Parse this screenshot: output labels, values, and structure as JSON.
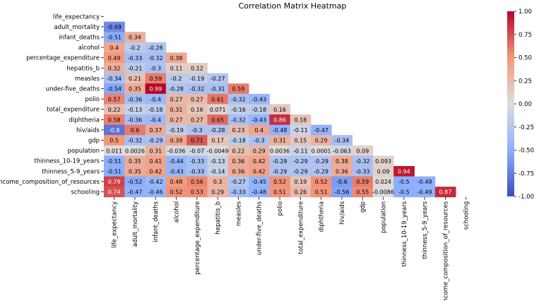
{
  "chart_data": {
    "type": "heatmap",
    "title": "Correlation Matrix Heatmap",
    "variables": [
      "life_expectancy",
      "adult_mortality",
      "infant_deaths",
      "alcohol",
      "percentage_expenditure",
      "hepatitis_b",
      "measles",
      "under-five_deaths",
      "polio",
      "total_expenditure",
      "diphtheria",
      "hiv/aids",
      "gdp",
      "population",
      "thinness_10-19_years",
      "thinness_5-9_years",
      "income_composition_of_resources",
      "schooling"
    ],
    "mask": "upper-triangle-including-diagonal",
    "lower_triangle_values": [
      [],
      [
        "-0.69"
      ],
      [
        "-0.51",
        "0.34"
      ],
      [
        "0.4",
        "-0.2",
        "-0.28"
      ],
      [
        "0.49",
        "-0.33",
        "-0.32",
        "0.38"
      ],
      [
        "0.32",
        "-0.21",
        "-0.3",
        "0.11",
        "0.12"
      ],
      [
        "-0.34",
        "0.21",
        "0.59",
        "-0.2",
        "-0.19",
        "-0.27"
      ],
      [
        "-0.54",
        "0.35",
        "0.99",
        "-0.28",
        "-0.32",
        "-0.31",
        "0.59"
      ],
      [
        "0.57",
        "-0.36",
        "-0.4",
        "0.27",
        "0.27",
        "0.61",
        "-0.32",
        "-0.43"
      ],
      [
        "0.22",
        "-0.13",
        "-0.18",
        "0.31",
        "0.16",
        "0.071",
        "-0.16",
        "-0.18",
        "0.16"
      ],
      [
        "0.58",
        "-0.36",
        "-0.4",
        "0.27",
        "0.27",
        "0.65",
        "-0.32",
        "-0.43",
        "0.86",
        "0.18"
      ],
      [
        "-0.8",
        "0.6",
        "0.37",
        "-0.19",
        "-0.3",
        "-0.28",
        "0.23",
        "0.4",
        "-0.48",
        "-0.11",
        "-0.47"
      ],
      [
        "0.5",
        "-0.32",
        "-0.29",
        "0.39",
        "0.71",
        "0.17",
        "-0.18",
        "-0.3",
        "0.31",
        "0.15",
        "0.29",
        "-0.34"
      ],
      [
        "0.011",
        "0.0026",
        "0.31",
        "-0.036",
        "-0.07",
        "-0.0049",
        "0.22",
        "0.29",
        "0.0036",
        "-0.11",
        "0.0001",
        "-0.063",
        "0.09"
      ],
      [
        "-0.51",
        "0.35",
        "0.41",
        "-0.44",
        "-0.33",
        "-0.13",
        "0.36",
        "0.42",
        "-0.29",
        "-0.29",
        "-0.29",
        "0.38",
        "-0.32",
        "0.093"
      ],
      [
        "-0.51",
        "0.35",
        "0.42",
        "-0.43",
        "-0.33",
        "-0.14",
        "0.36",
        "0.42",
        "-0.29",
        "-0.29",
        "-0.29",
        "0.36",
        "-0.33",
        "0.09",
        "0.94"
      ],
      [
        "0.79",
        "-0.52",
        "-0.42",
        "0.48",
        "0.56",
        "0.3",
        "-0.27",
        "-0.45",
        "0.52",
        "0.19",
        "0.52",
        "-0.6",
        "0.59",
        "0.024",
        "-0.5",
        "-0.49"
      ],
      [
        "0.74",
        "-0.47",
        "-0.46",
        "0.52",
        "0.53",
        "0.29",
        "-0.33",
        "-0.48",
        "0.51",
        "0.26",
        "0.51",
        "-0.56",
        "0.55",
        "-0.0086",
        "-0.5",
        "-0.49",
        "0.87"
      ]
    ],
    "colorbar": {
      "colormap": "coolwarm",
      "vmin": -1.0,
      "vmax": 1.0,
      "ticks": [
        "1.00",
        "0.75",
        "0.50",
        "0.25",
        "0.00",
        "-0.25",
        "-0.50",
        "-0.75",
        "-1.00"
      ]
    },
    "colors": {
      "low": "#3b4cc0",
      "mid": "#dddddd",
      "high": "#b40426"
    }
  }
}
